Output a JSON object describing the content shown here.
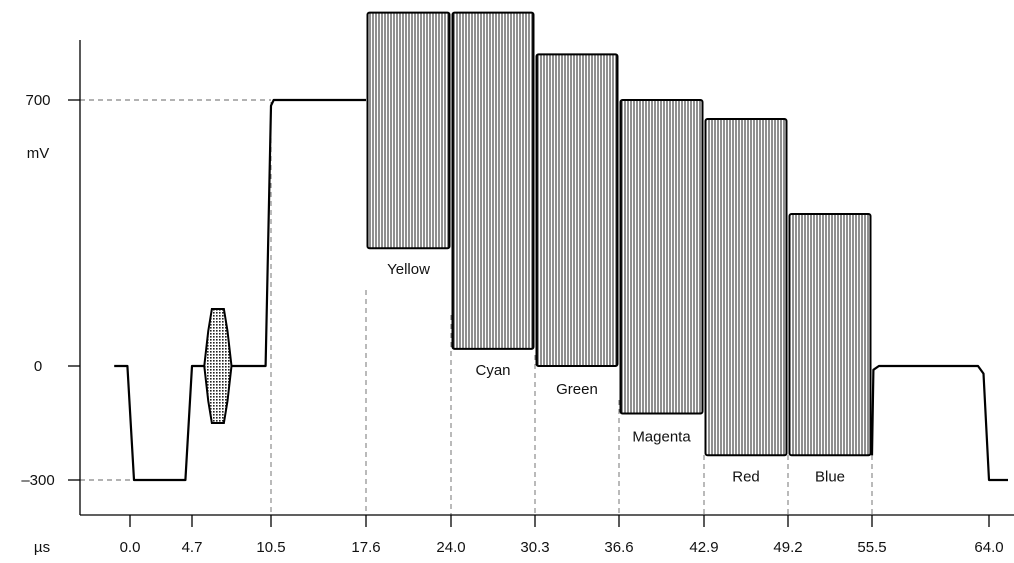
{
  "y_axis": {
    "unit": "mV",
    "ticks": [
      {
        "value": 700,
        "label": "700"
      },
      {
        "value": 0,
        "label": "0"
      },
      {
        "value": -300,
        "label": "–300"
      }
    ]
  },
  "x_axis": {
    "unit": "µs",
    "ticks": [
      {
        "value": 0.0,
        "label": "0.0"
      },
      {
        "value": 4.7,
        "label": "4.7"
      },
      {
        "value": 10.5,
        "label": "10.5"
      },
      {
        "value": 17.6,
        "label": "17.6"
      },
      {
        "value": 24.0,
        "label": "24.0"
      },
      {
        "value": 30.3,
        "label": "30.3"
      },
      {
        "value": 36.6,
        "label": "36.6"
      },
      {
        "value": 42.9,
        "label": "42.9"
      },
      {
        "value": 49.2,
        "label": "49.2"
      },
      {
        "value": 55.5,
        "label": "55.5"
      },
      {
        "value": 64.0,
        "label": "64.0"
      }
    ]
  },
  "bars": [
    {
      "name": "Yellow",
      "x0": 17.6,
      "x1": 24.0,
      "low": 310,
      "high": 930
    },
    {
      "name": "Cyan",
      "x0": 24.0,
      "x1": 30.3,
      "low": 45,
      "high": 930
    },
    {
      "name": "Green",
      "x0": 30.3,
      "x1": 36.6,
      "low": 0,
      "high": 820
    },
    {
      "name": "Magenta",
      "x0": 36.6,
      "x1": 42.9,
      "low": -125,
      "high": 700
    },
    {
      "name": "Red",
      "x0": 42.9,
      "x1": 49.2,
      "low": -235,
      "high": 650
    },
    {
      "name": "Blue",
      "x0": 49.2,
      "x1": 55.5,
      "low": -235,
      "high": 400
    }
  ],
  "burst": {
    "x0": 5.6,
    "x1": 7.6,
    "low": -150,
    "high": 150
  }
}
